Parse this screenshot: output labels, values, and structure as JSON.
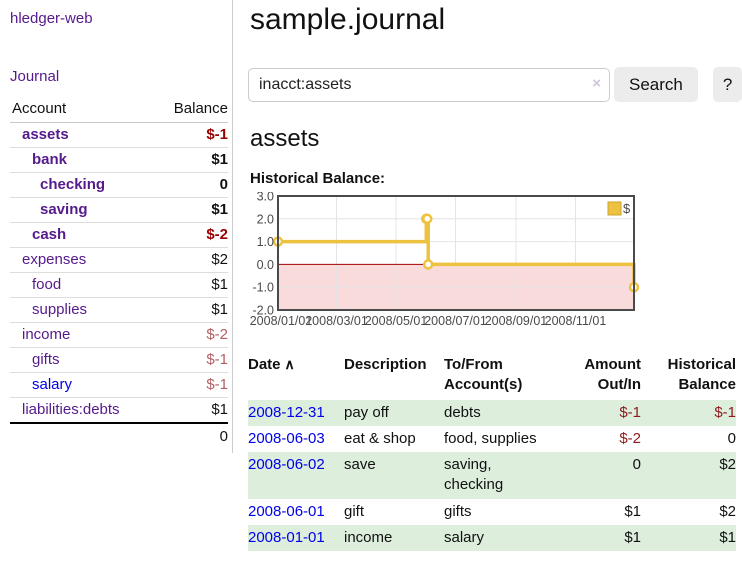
{
  "app": {
    "title": "hledger-web",
    "nav_journal": "Journal"
  },
  "colors": {
    "link_purple": "#551a8b",
    "link_blue": "#0000e8",
    "negative_strong": "#990000",
    "negative_soft": "#b35f63",
    "negative_table": "#8e1b1b",
    "row_green": "#ddeedd",
    "button_bg": "#ececec"
  },
  "sidebar": {
    "accounts_header": {
      "account": "Account",
      "balance": "Balance"
    },
    "accounts": [
      {
        "name": "assets",
        "balance": "$-1",
        "level": 1,
        "bold": true,
        "negative": true,
        "blue": false
      },
      {
        "name": "bank",
        "balance": "$1",
        "level": 2,
        "bold": true,
        "negative": false,
        "blue": false
      },
      {
        "name": "checking",
        "balance": "0",
        "level": 3,
        "bold": true,
        "negative": false,
        "blue": false
      },
      {
        "name": "saving",
        "balance": "$1",
        "level": 3,
        "bold": true,
        "negative": false,
        "blue": false
      },
      {
        "name": "cash",
        "balance": "$-2",
        "level": 2,
        "bold": true,
        "negative": true,
        "blue": false
      },
      {
        "name": "expenses",
        "balance": "$2",
        "level": 1,
        "bold": false,
        "negative": false,
        "blue": false
      },
      {
        "name": "food",
        "balance": "$1",
        "level": 2,
        "bold": false,
        "negative": false,
        "blue": false
      },
      {
        "name": "supplies",
        "balance": "$1",
        "level": 2,
        "bold": false,
        "negative": false,
        "blue": false
      },
      {
        "name": "income",
        "balance": "$-2",
        "level": 1,
        "bold": false,
        "negative": true,
        "blue": false
      },
      {
        "name": "gifts",
        "balance": "$-1",
        "level": 2,
        "bold": false,
        "negative": true,
        "blue": false
      },
      {
        "name": "salary",
        "balance": "$-1",
        "level": 2,
        "bold": false,
        "negative": true,
        "blue": true
      },
      {
        "name": "liabilities:debts",
        "balance": "$1",
        "level": 1,
        "bold": false,
        "negative": false,
        "blue": false
      }
    ],
    "total": "0"
  },
  "header": {
    "title": "sample.journal"
  },
  "search": {
    "value": "inacct:assets",
    "clear_icon": "×",
    "button_label": "Search",
    "help_label": "?"
  },
  "account_page": {
    "title": "assets",
    "chart_label": "Historical Balance:"
  },
  "chart_data": {
    "type": "line",
    "step": true,
    "title": "Historical Balance",
    "series": [
      {
        "name": "$",
        "color": "#edc240",
        "points": [
          [
            "2008-01-01",
            1
          ],
          [
            "2008-06-01",
            2
          ],
          [
            "2008-06-02",
            2
          ],
          [
            "2008-06-03",
            0
          ],
          [
            "2008-12-31",
            -1
          ]
        ]
      }
    ],
    "x_range": [
      "2008-01-01",
      "2008-12-31"
    ],
    "ylim": [
      -2,
      3
    ],
    "y_ticks": [
      {
        "label": "3.0",
        "value": 3
      },
      {
        "label": "2.0",
        "value": 2
      },
      {
        "label": "1.0",
        "value": 1
      },
      {
        "label": "0.0",
        "value": 0
      },
      {
        "label": "-1.0",
        "value": -1
      },
      {
        "label": "-2.0",
        "value": -2
      }
    ],
    "x_ticks": [
      {
        "label": "2008/01/01",
        "date": "2008-01-01"
      },
      {
        "label": "2008/03/01",
        "date": "2008-03-01"
      },
      {
        "label": "2008/05/01",
        "date": "2008-05-01"
      },
      {
        "label": "2008/07/01",
        "date": "2008-07-01"
      },
      {
        "label": "2008/09/01",
        "date": "2008-09-01"
      },
      {
        "label": "2008/11/01",
        "date": "2008-11-01"
      }
    ],
    "legend": {
      "label": "$",
      "position": "top-right"
    },
    "grid": true,
    "negative_region_color": "#fadbdb",
    "zero_line_color": "#a40000",
    "border_color": "#4a4a4a",
    "grid_color": "#e4e4e4",
    "tick_color": "#4a4a4a"
  },
  "register": {
    "columns": [
      "Date",
      "Description",
      "To/From Account(s)",
      "Amount Out/In",
      "Historical Balance"
    ],
    "sort_indicator": "∧",
    "rows": [
      {
        "date": "2008-12-31",
        "description": "pay off",
        "accounts": "debts",
        "amount": "$-1",
        "balance": "$-1"
      },
      {
        "date": "2008-06-03",
        "description": "eat & shop",
        "accounts": "food, supplies",
        "amount": "$-2",
        "balance": "0"
      },
      {
        "date": "2008-06-02",
        "description": "save",
        "accounts": "saving, checking",
        "amount": "0",
        "balance": "$2"
      },
      {
        "date": "2008-06-01",
        "description": "gift",
        "accounts": "gifts",
        "amount": "$1",
        "balance": "$2"
      },
      {
        "date": "2008-01-01",
        "description": "income",
        "accounts": "salary",
        "amount": "$1",
        "balance": "$1"
      }
    ]
  }
}
